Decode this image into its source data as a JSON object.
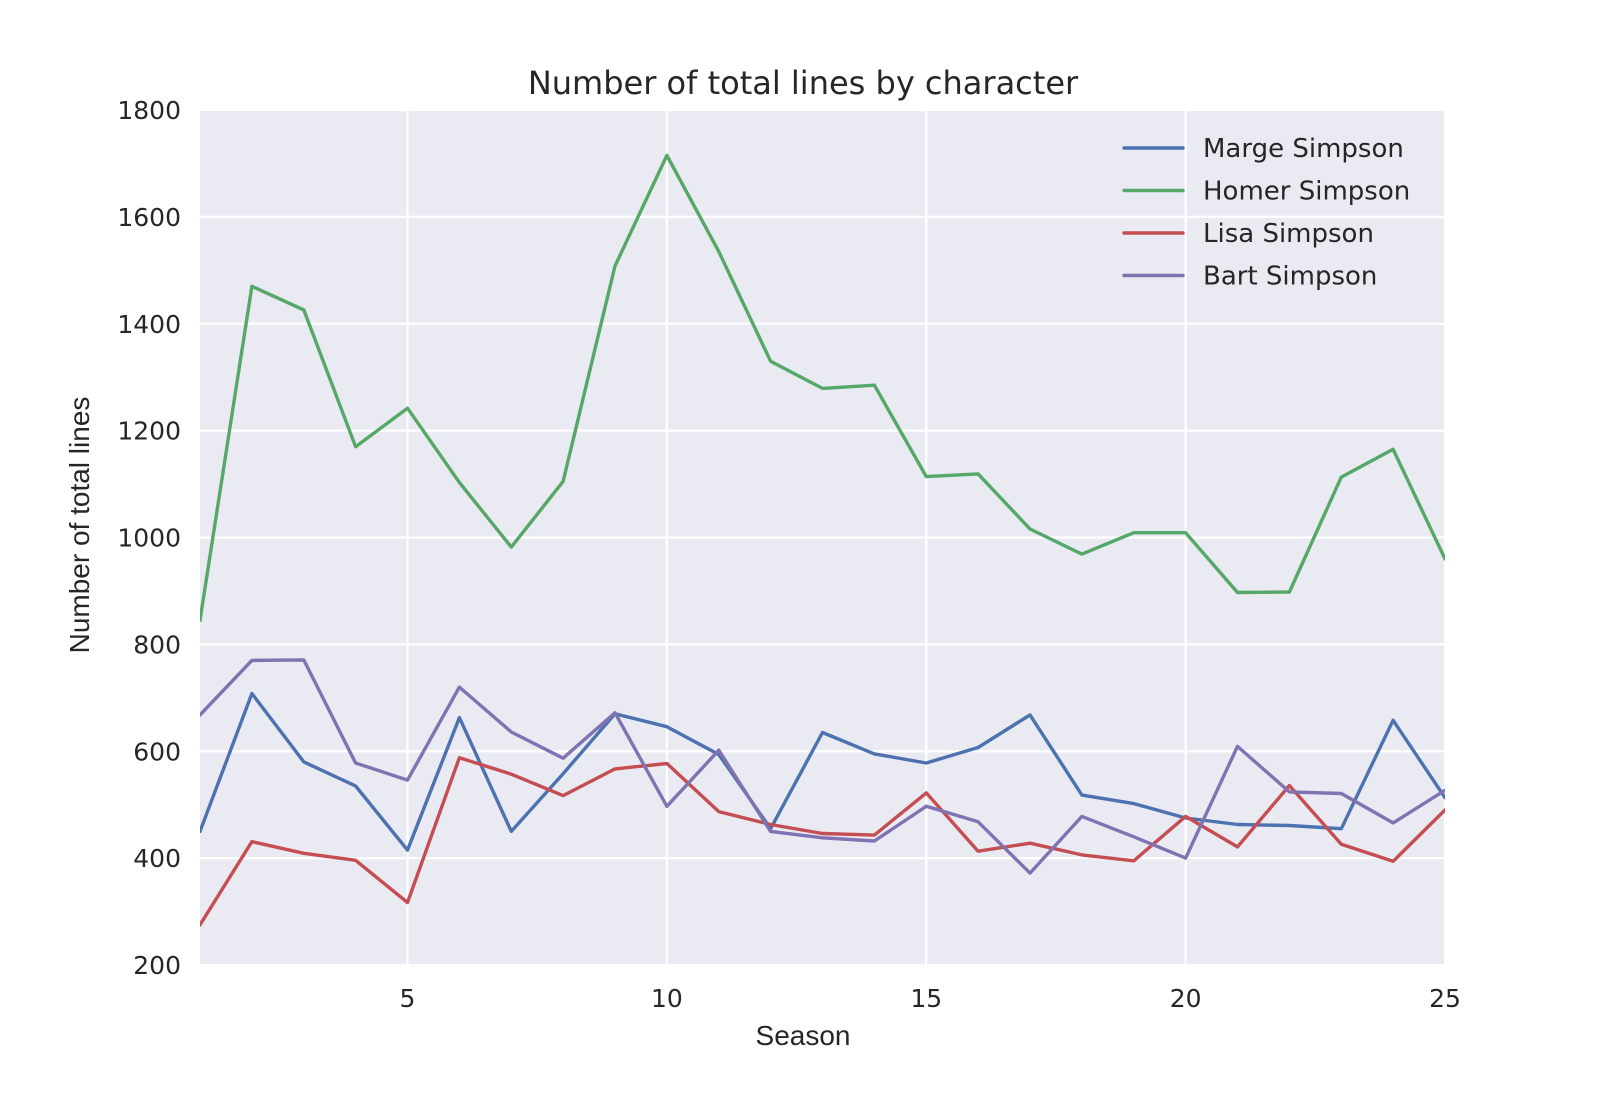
{
  "chart_data": {
    "type": "line",
    "title": "Number of total lines by character",
    "xlabel": "Season",
    "ylabel": "Number of total lines",
    "xlim": [
      1,
      25
    ],
    "ylim": [
      200,
      1800
    ],
    "xticks": [
      5,
      10,
      15,
      20,
      25
    ],
    "yticks": [
      200,
      400,
      600,
      800,
      1000,
      1200,
      1400,
      1600,
      1800
    ],
    "grid": true,
    "legend_position": "top-right",
    "background_color": "#eaeaf2",
    "x": [
      1,
      2,
      3,
      4,
      5,
      6,
      7,
      8,
      9,
      10,
      11,
      12,
      13,
      14,
      15,
      16,
      17,
      18,
      19,
      20,
      21,
      22,
      23,
      24,
      25
    ],
    "series": [
      {
        "name": "Marge Simpson",
        "color": "#4c72b0",
        "values": [
          450,
          708,
          580,
          535,
          415,
          663,
          450,
          558,
          670,
          646,
          594,
          455,
          635,
          595,
          578,
          607,
          668,
          518,
          502,
          475,
          463,
          461,
          455,
          658,
          513
        ]
      },
      {
        "name": "Homer Simpson",
        "color": "#55a868",
        "values": [
          845,
          1470,
          1426,
          1170,
          1242,
          1103,
          982,
          1105,
          1508,
          1715,
          1535,
          1330,
          1279,
          1285,
          1114,
          1119,
          1016,
          969,
          1009,
          1009,
          897,
          898,
          1113,
          1165,
          960
        ]
      },
      {
        "name": "Lisa Simpson",
        "color": "#c44e52",
        "values": [
          275,
          431,
          409,
          396,
          317,
          588,
          557,
          517,
          567,
          577,
          487,
          463,
          446,
          443,
          522,
          413,
          428,
          406,
          395,
          478,
          421,
          536,
          426,
          394,
          490
        ]
      },
      {
        "name": "Bart Simpson",
        "color": "#8172b2",
        "values": [
          668,
          770,
          771,
          578,
          546,
          720,
          636,
          587,
          672,
          497,
          602,
          450,
          438,
          432,
          497,
          468,
          372,
          478,
          440,
          400,
          609,
          524,
          521,
          466,
          527
        ]
      }
    ]
  }
}
